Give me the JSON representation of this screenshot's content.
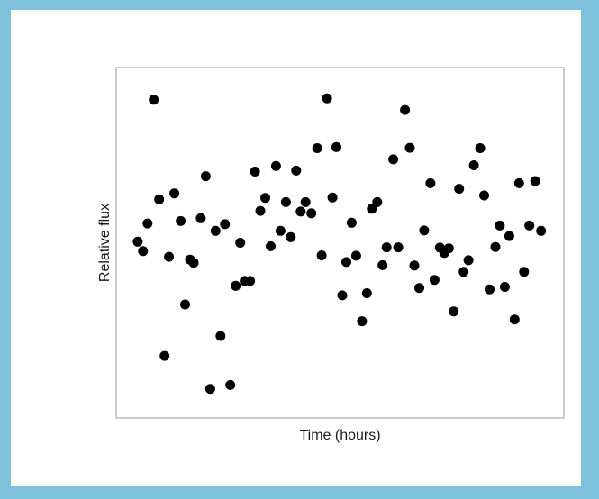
{
  "chart_data": {
    "type": "scatter",
    "title": "",
    "xlabel": "Time (hours)",
    "ylabel": "Relative flux",
    "xlim": [
      0,
      100
    ],
    "ylim": [
      0,
      100
    ],
    "grid": false,
    "legend": "none",
    "ticks": "none",
    "series": [
      {
        "color": "#000000",
        "points": [
          [
            4.8,
            50.3
          ],
          [
            6.0,
            47.6
          ],
          [
            7.0,
            55.5
          ],
          [
            8.4,
            90.8
          ],
          [
            9.6,
            62.4
          ],
          [
            10.8,
            17.7
          ],
          [
            11.8,
            46.0
          ],
          [
            13.0,
            64.1
          ],
          [
            14.4,
            56.2
          ],
          [
            15.4,
            32.4
          ],
          [
            16.5,
            45.2
          ],
          [
            17.3,
            44.3
          ],
          [
            18.9,
            57.0
          ],
          [
            20.0,
            69.0
          ],
          [
            21.0,
            8.3
          ],
          [
            22.2,
            53.4
          ],
          [
            23.3,
            23.4
          ],
          [
            24.3,
            55.3
          ],
          [
            25.5,
            9.4
          ],
          [
            26.7,
            37.7
          ],
          [
            27.7,
            50.0
          ],
          [
            28.7,
            39.1
          ],
          [
            29.9,
            39.1
          ],
          [
            31.0,
            70.3
          ],
          [
            32.2,
            59.1
          ],
          [
            33.3,
            62.8
          ],
          [
            34.5,
            49.0
          ],
          [
            35.7,
            71.9
          ],
          [
            36.7,
            53.4
          ],
          [
            37.9,
            61.6
          ],
          [
            39.0,
            51.6
          ],
          [
            40.2,
            70.6
          ],
          [
            41.2,
            58.9
          ],
          [
            42.3,
            61.6
          ],
          [
            43.6,
            58.4
          ],
          [
            44.9,
            77.0
          ],
          [
            45.9,
            46.4
          ],
          [
            47.1,
            91.2
          ],
          [
            48.3,
            62.9
          ],
          [
            49.2,
            77.3
          ],
          [
            50.5,
            35.0
          ],
          [
            51.4,
            44.5
          ],
          [
            52.6,
            55.7
          ],
          [
            53.6,
            46.3
          ],
          [
            54.9,
            27.6
          ],
          [
            56.0,
            35.6
          ],
          [
            57.1,
            59.7
          ],
          [
            58.3,
            61.6
          ],
          [
            59.5,
            43.6
          ],
          [
            60.4,
            48.7
          ],
          [
            61.9,
            73.8
          ],
          [
            63.0,
            48.7
          ],
          [
            64.5,
            87.9
          ],
          [
            65.6,
            77.1
          ],
          [
            66.6,
            43.5
          ],
          [
            67.7,
            37.1
          ],
          [
            68.8,
            53.5
          ],
          [
            70.2,
            67.0
          ],
          [
            71.1,
            39.4
          ],
          [
            72.3,
            48.6
          ],
          [
            73.3,
            47.1
          ],
          [
            74.3,
            48.4
          ],
          [
            75.4,
            30.4
          ],
          [
            76.6,
            65.4
          ],
          [
            77.6,
            41.7
          ],
          [
            78.7,
            45.0
          ],
          [
            79.9,
            72.1
          ],
          [
            81.3,
            77.0
          ],
          [
            82.2,
            63.5
          ],
          [
            83.4,
            36.7
          ],
          [
            84.7,
            48.8
          ],
          [
            85.7,
            54.9
          ],
          [
            86.8,
            37.4
          ],
          [
            87.8,
            51.9
          ],
          [
            89.0,
            28.1
          ],
          [
            90.0,
            67.0
          ],
          [
            91.1,
            41.7
          ],
          [
            92.3,
            54.9
          ],
          [
            93.6,
            67.6
          ],
          [
            94.9,
            53.4
          ]
        ]
      }
    ]
  }
}
